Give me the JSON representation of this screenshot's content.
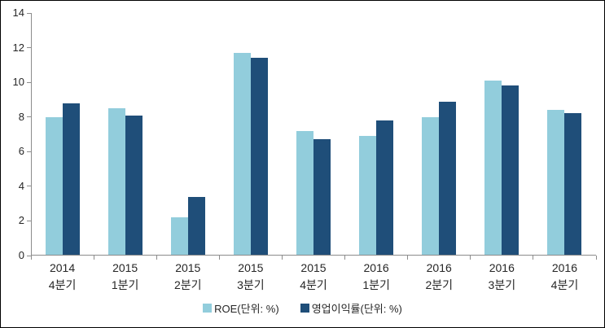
{
  "chart_data": {
    "type": "bar",
    "title": "",
    "xlabel": "",
    "ylabel": "",
    "categories": [
      [
        "2014",
        "4분기"
      ],
      [
        "2015",
        "1분기"
      ],
      [
        "2015",
        "2분기"
      ],
      [
        "2015",
        "3분기"
      ],
      [
        "2015",
        "4분기"
      ],
      [
        "2016",
        "1분기"
      ],
      [
        "2016",
        "2분기"
      ],
      [
        "2016",
        "3분기"
      ],
      [
        "2016",
        "4분기"
      ]
    ],
    "series": [
      {
        "name": "ROE(단위: %)",
        "color": "#92CDDC",
        "values": [
          8.0,
          8.5,
          2.2,
          11.7,
          7.2,
          6.9,
          8.0,
          10.1,
          8.4
        ]
      },
      {
        "name": "영업이익률(단위: %)",
        "color": "#1F4E79",
        "values": [
          8.8,
          8.1,
          3.4,
          11.4,
          6.7,
          7.8,
          8.9,
          9.8,
          8.2
        ]
      }
    ],
    "ylim": [
      0,
      14
    ],
    "yticks": [
      0,
      2,
      4,
      6,
      8,
      10,
      12,
      14
    ],
    "grid": false,
    "legend_position": "bottom-center",
    "axis_color": "#8C8C8C",
    "text_color": "#262626",
    "background_color": "#FFFFFF"
  }
}
